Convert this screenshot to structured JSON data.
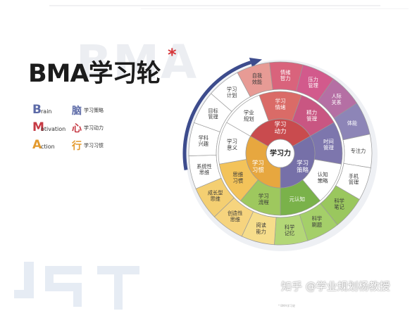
{
  "title": "BMA学习轮",
  "title_star": "*",
  "bg_word": "BMA",
  "legend": [
    {
      "letter": "B",
      "word": "rain",
      "cn": "脑",
      "desc": "学习策略",
      "color": "#5c6aa7"
    },
    {
      "letter": "M",
      "word": "otivation",
      "cn": "心",
      "desc": "学习动力",
      "color": "#c63a44"
    },
    {
      "letter": "A",
      "word": "ction",
      "cn": "行",
      "desc": "学习习惯",
      "color": "#e39a2e"
    }
  ],
  "colors": {
    "motivation": "#c94b4e",
    "strategy": "#7670a8",
    "habit": "#e7a73f",
    "cognition": "#7ab24a",
    "center": "#ffffff",
    "ring_fill": "#ffffff",
    "arrow": "#3d4c8d"
  },
  "center_label": "学习力",
  "inner": [
    {
      "label": "学习\n动力",
      "color": "#c94b4e",
      "text_color": "#ffffff"
    },
    {
      "label": "学习\n策略",
      "color": "#7670a8",
      "text_color": "#ffffff"
    },
    {
      "label": "学习\n习惯",
      "color": "#e7a73f",
      "text_color": "#ffffff"
    }
  ],
  "middle": [
    {
      "label": "学习\n情绪",
      "color": "#da6b67",
      "text_color": "#ffffff"
    },
    {
      "label": "精力\n管理",
      "color": "#c95682",
      "text_color": "#ffffff"
    },
    {
      "label": "时间\n管理",
      "color": "#7d76ad",
      "text_color": "#ffffff"
    },
    {
      "label": "认知\n策略",
      "color": "#ffffff",
      "text_color": "#3a3a3a"
    },
    {
      "label": "元认知",
      "color": "#7ab24a",
      "text_color": "#ffffff"
    },
    {
      "label": "学习\n流程",
      "color": "#9ec85e",
      "text_color": "#3a3a3a"
    },
    {
      "label": "思维\n习惯",
      "color": "#f3c35a",
      "text_color": "#3a3a3a"
    },
    {
      "label": "学习\n意义",
      "color": "#ffffff",
      "text_color": "#3a3a3a"
    },
    {
      "label": "学业\n规划",
      "color": "#ffffff",
      "text_color": "#3a3a3a"
    }
  ],
  "outer": [
    {
      "label": "自我\n效能",
      "color": "#e79b95",
      "text_color": "#3a3a3a"
    },
    {
      "label": "情绪\n智力",
      "color": "#d9637c",
      "text_color": "#ffffff"
    },
    {
      "label": "压力\n管理",
      "color": "#d25a8c",
      "text_color": "#ffffff"
    },
    {
      "label": "人际\n关系",
      "color": "#b56fa4",
      "text_color": "#ffffff"
    },
    {
      "label": "体能",
      "color": "#8d85b7",
      "text_color": "#ffffff"
    },
    {
      "label": "专注力",
      "color": "#ffffff",
      "text_color": "#3a3a3a"
    },
    {
      "label": "手机\n管理",
      "color": "#ffffff",
      "text_color": "#3a3a3a"
    },
    {
      "label": "科学\n笔记",
      "color": "#9ac75e",
      "text_color": "#3a3a3a"
    },
    {
      "label": "科学\n刷题",
      "color": "#a4cf69",
      "text_color": "#3a3a3a"
    },
    {
      "label": "科学\n记忆",
      "color": "#b3d777",
      "text_color": "#3a3a3a"
    },
    {
      "label": "阅读\n能力",
      "color": "#f6dd8b",
      "text_color": "#3a3a3a"
    },
    {
      "label": "创造性\n思维",
      "color": "#f6d47e",
      "text_color": "#3a3a3a"
    },
    {
      "label": "成长型\n思维",
      "color": "#f4cf72",
      "text_color": "#3a3a3a"
    },
    {
      "label": "系统性\n思维",
      "color": "#ffffff",
      "text_color": "#3a3a3a"
    },
    {
      "label": "学科\n兴趣",
      "color": "#ffffff",
      "text_color": "#3a3a3a"
    },
    {
      "label": "目标\n管理",
      "color": "#ffffff",
      "text_color": "#3a3a3a"
    },
    {
      "label": "学习\n计划",
      "color": "#ffffff",
      "text_color": "#3a3a3a"
    }
  ],
  "watermark": "知乎 @学业规划杨教授",
  "footnote": "* BMA学习轮"
}
